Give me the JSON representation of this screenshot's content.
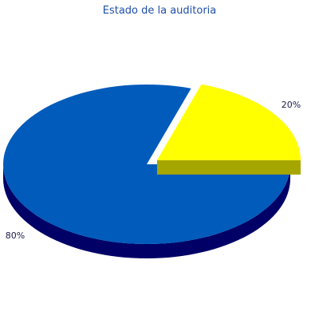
{
  "chart_data": {
    "type": "pie",
    "title": "Estado de la auditoria",
    "three_d": true,
    "exploded": true,
    "slices": [
      {
        "label": "20%",
        "value": 20,
        "color": "#ffff00",
        "side_color": "#a6a600"
      },
      {
        "label": "80%",
        "value": 80,
        "color": "#005bbb",
        "side_color": "#000066"
      }
    ]
  }
}
